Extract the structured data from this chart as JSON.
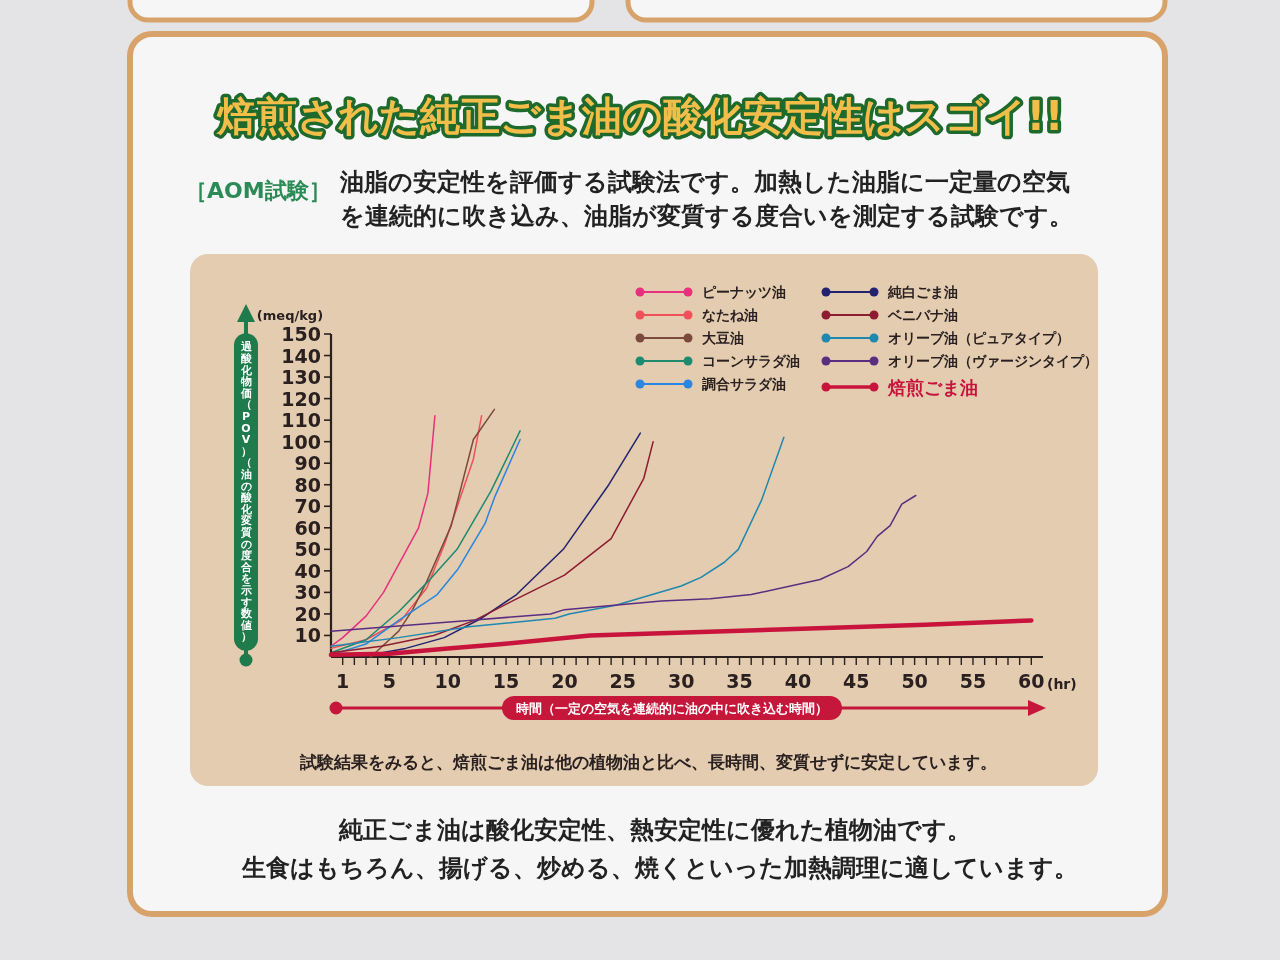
{
  "chart_data": {
    "type": "line",
    "title": "焙煎された純正ごま油の酸化安定性はスゴイ!!",
    "subtitle": "油脂の安定性を評価する試験法です。加熱した油脂に一定量の空気を連続的に吹き込み、油脂が変質する度合いを測定する試験です。",
    "xlabel": "時間（一定の空気を連続的に油の中に吹き込む時間）",
    "ylabel": "過酸化物価（POV）（油の酸化変質の度合を示す数値）",
    "annotations": [
      "［AOM試験］",
      "(meq/kg)",
      "(hr)",
      "試験結果をみると、焙煎ごま油は他の植物油と比べ、長時間、変質せずに安定しています。",
      "純正ごま油は酸化安定性、熱安定性に優れた植物油です。",
      "生食はもちろん、揚げる、炒める、焼くといった加熱調理に適しています。"
    ],
    "xlim": [
      0,
      61
    ],
    "ylim": [
      0,
      150
    ],
    "xticks": [
      1,
      {
        "value": 2,
        "label": null
      },
      {
        "value": 3,
        "label": null
      },
      {
        "value": 4,
        "label": null
      },
      5,
      {
        "value": 6,
        "label": null
      },
      {
        "value": 7,
        "label": null
      },
      {
        "value": 8,
        "label": null
      },
      {
        "value": 9,
        "label": null
      },
      10,
      {
        "value": 11,
        "label": null
      },
      {
        "value": 12,
        "label": null
      },
      {
        "value": 13,
        "label": null
      },
      {
        "value": 14,
        "label": null
      },
      15,
      {
        "value": 16,
        "label": null
      },
      {
        "value": 17,
        "label": null
      },
      {
        "value": 18,
        "label": null
      },
      {
        "value": 19,
        "label": null
      },
      20,
      {
        "value": 21,
        "label": null
      },
      {
        "value": 22,
        "label": null
      },
      {
        "value": 23,
        "label": null
      },
      {
        "value": 24,
        "label": null
      },
      25,
      {
        "value": 26,
        "label": null
      },
      {
        "value": 27,
        "label": null
      },
      {
        "value": 28,
        "label": null
      },
      {
        "value": 29,
        "label": null
      },
      30,
      {
        "value": 31,
        "label": null
      },
      {
        "value": 32,
        "label": null
      },
      {
        "value": 33,
        "label": null
      },
      {
        "value": 34,
        "label": null
      },
      35,
      {
        "value": 36,
        "label": null
      },
      {
        "value": 37,
        "label": null
      },
      {
        "value": 38,
        "label": null
      },
      {
        "value": 39,
        "label": null
      },
      40,
      {
        "value": 41,
        "label": null
      },
      {
        "value": 42,
        "label": null
      },
      {
        "value": 43,
        "label": null
      },
      {
        "value": 44,
        "label": null
      },
      45,
      {
        "value": 46,
        "label": null
      },
      {
        "value": 47,
        "label": null
      },
      {
        "value": 48,
        "label": null
      },
      {
        "value": 49,
        "label": null
      },
      50,
      {
        "value": 51,
        "label": null
      },
      {
        "value": 52,
        "label": null
      },
      {
        "value": 53,
        "label": null
      },
      {
        "value": 54,
        "label": null
      },
      55,
      {
        "value": 56,
        "label": null
      },
      {
        "value": 57,
        "label": null
      },
      {
        "value": 58,
        "label": null
      },
      {
        "value": 59,
        "label": null
      },
      60
    ],
    "yticks": [
      10,
      20,
      30,
      40,
      50,
      60,
      70,
      80,
      90,
      100,
      110,
      120,
      130,
      140,
      150
    ],
    "legend": "top right",
    "series": [
      {
        "name": "ピーナッツ油",
        "color": "#e8307e",
        "x": [
          0,
          1,
          3,
          4.5,
          6,
          7.5,
          8.3,
          8.9
        ],
        "values": [
          5,
          9,
          19,
          30,
          45,
          60,
          76,
          112
        ]
      },
      {
        "name": "なたね油",
        "color": "#f0505a",
        "x": [
          0,
          3,
          6,
          8.2,
          9.7,
          12.2,
          12.9
        ],
        "values": [
          4,
          8,
          17,
          32,
          52,
          92,
          112
        ]
      },
      {
        "name": "大豆油",
        "color": "#7b4a3c",
        "x": [
          3.4,
          5,
          5.8,
          7,
          8.2,
          10.3,
          12.2,
          14
        ],
        "values": [
          0,
          8,
          12,
          22,
          35,
          61,
          101,
          115
        ]
      },
      {
        "name": "コーンサラダ油",
        "color": "#1e8a70",
        "x": [
          0,
          3,
          5.8,
          8.3,
          10.8,
          13.7,
          16.2
        ],
        "values": [
          2,
          8,
          21,
          35,
          50,
          77,
          105
        ]
      },
      {
        "name": "調合サラダ油",
        "color": "#2a86de",
        "x": [
          0,
          3,
          5.8,
          9.1,
          10.9,
          13.2,
          14,
          16.2
        ],
        "values": [
          1,
          6,
          17,
          29,
          41,
          62,
          74,
          101
        ]
      },
      {
        "name": "純白ごま油",
        "color": "#22226e",
        "x": [
          3.4,
          6.4,
          9.7,
          12.9,
          15.9,
          19.9,
          23.8,
          26.5
        ],
        "values": [
          1,
          4,
          9,
          18,
          29,
          50,
          80,
          104
        ]
      },
      {
        "name": "ベニバナ油",
        "color": "#8e1c30",
        "x": [
          0,
          4.3,
          8.8,
          12.3,
          15.9,
          20,
          24,
          26.8,
          27.6
        ],
        "values": [
          2,
          5,
          10,
          17,
          27,
          38,
          55,
          83,
          100
        ]
      },
      {
        "name": "オリーブ油（ピュアタイプ）",
        "color": "#1f88b0",
        "x": [
          0,
          5.8,
          11.8,
          19.2,
          20.4,
          24.4,
          30,
          31.7,
          33.7,
          34.9,
          36.9,
          38.8
        ],
        "values": [
          5,
          9,
          14,
          18,
          20,
          24,
          33,
          37,
          44,
          50,
          73,
          102
        ]
      },
      {
        "name": "オリーブ油（ヴァージンタイプ）",
        "color": "#5a2d80",
        "x": [
          0,
          11.8,
          18.8,
          20,
          28.3,
          32.5,
          36,
          41.9,
          44.3,
          45.9,
          46.8,
          47.9,
          48.9,
          50.1
        ],
        "values": [
          12,
          17,
          20,
          22,
          26,
          27,
          29,
          36,
          42,
          49,
          56,
          61,
          71,
          75
        ]
      },
      {
        "name": "焙煎ごま油",
        "color": "#c8143c",
        "x": [
          0,
          5,
          10,
          14.7,
          22.2,
          28.3,
          39.7,
          50.9,
          60
        ],
        "values": [
          1,
          1.5,
          4,
          6,
          10,
          11,
          13,
          15,
          17
        ]
      }
    ]
  }
}
